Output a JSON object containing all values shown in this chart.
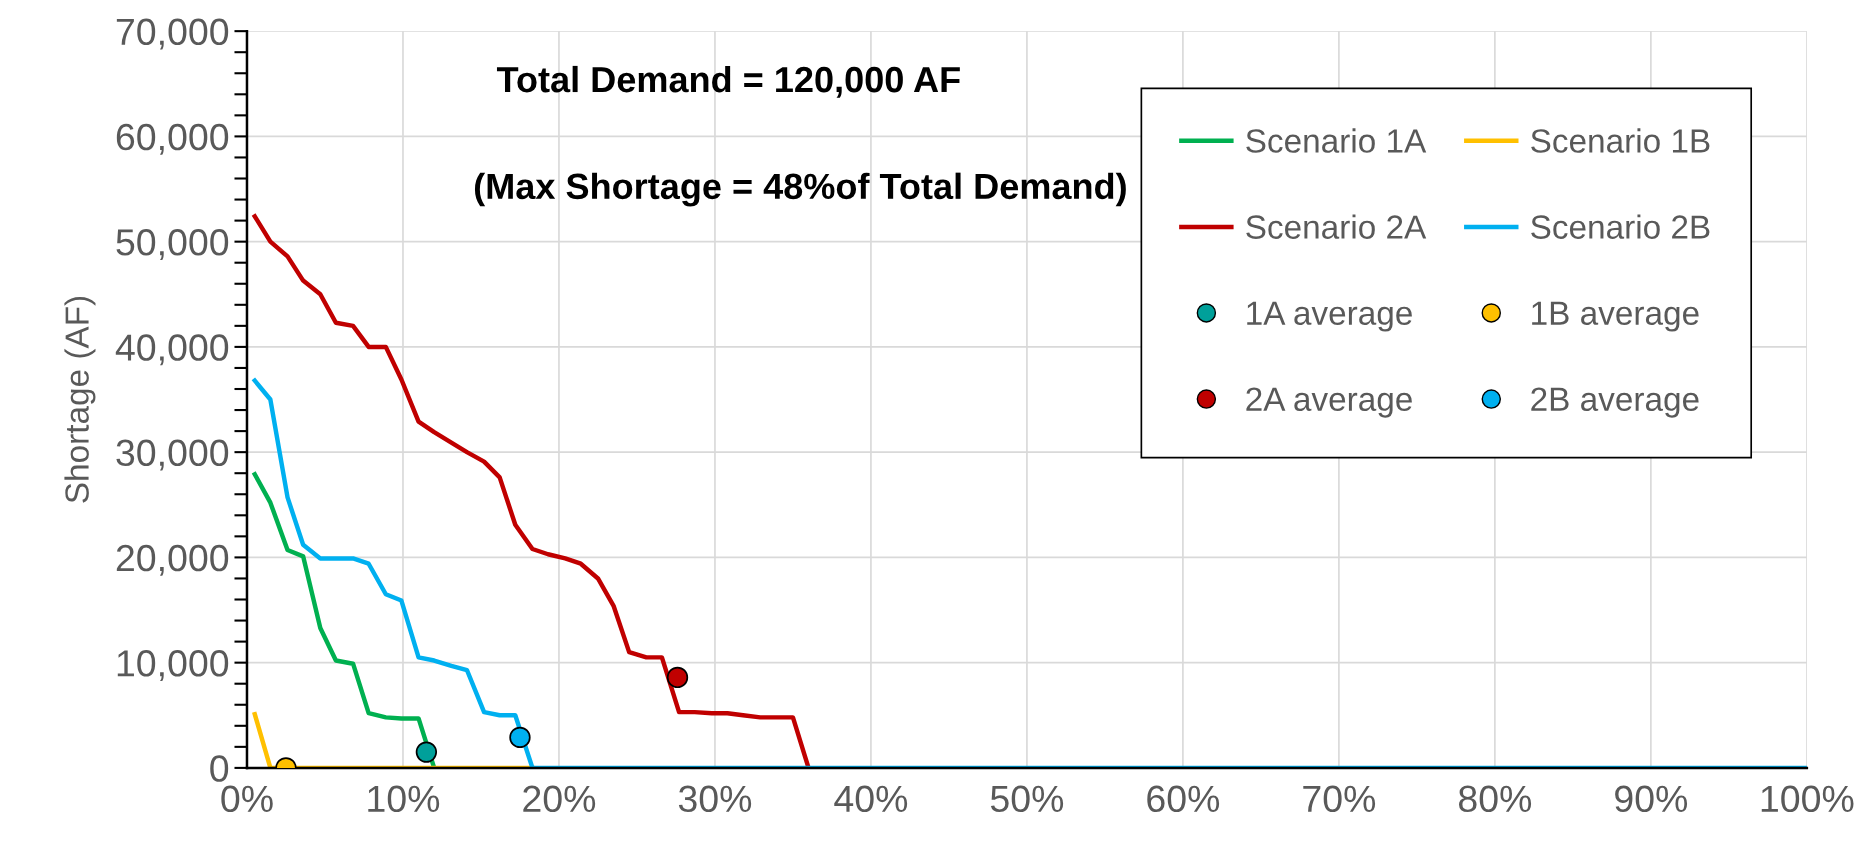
{
  "chart_data": {
    "type": "line",
    "ylabel": "Shortage (AF)",
    "annotations": [
      "Total Demand = 120,000 AF",
      "(Max Shortage = 48%of Total Demand)"
    ],
    "xlim": [
      0,
      100
    ],
    "ylim": [
      0,
      70000
    ],
    "xticks": [
      {
        "value": 0,
        "label": "0%"
      },
      {
        "value": 10,
        "label": "10%"
      },
      {
        "value": 20,
        "label": "20%"
      },
      {
        "value": 30,
        "label": "30%"
      },
      {
        "value": 40,
        "label": "40%"
      },
      {
        "value": 50,
        "label": "50%"
      },
      {
        "value": 60,
        "label": "60%"
      },
      {
        "value": 70,
        "label": "70%"
      },
      {
        "value": 80,
        "label": "80%"
      },
      {
        "value": 90,
        "label": "90%"
      },
      {
        "value": 100,
        "label": "100%"
      }
    ],
    "yticks": [
      0,
      {
        "value": 10000,
        "label": "10,000"
      },
      {
        "value": 20000,
        "label": "20,000"
      },
      {
        "value": 30000,
        "label": "30,000"
      },
      {
        "value": 40000,
        "label": "40,000"
      },
      {
        "value": 50000,
        "label": "50,000"
      },
      {
        "value": 60000,
        "label": "60,000"
      },
      {
        "value": 70000,
        "label": "70,000"
      }
    ],
    "grid": true,
    "legend": "top right",
    "line_style": "solid",
    "series": [
      {
        "name": "Scenario 1A",
        "color": "#00b050",
        "x": [
          0.5,
          1.5,
          2.6,
          3.6,
          4.7,
          5.7,
          6.8,
          7.8,
          8.9,
          9.9,
          11.0,
          12.0
        ],
        "values": [
          27900,
          25200,
          20700,
          20100,
          13300,
          10200,
          9900,
          5200,
          4800,
          4700,
          4700,
          0
        ]
      },
      {
        "name": "Scenario 1B",
        "color": "#ffc000",
        "x": [
          0.5,
          1.5,
          18.3
        ],
        "values": [
          5100,
          0,
          0
        ]
      },
      {
        "name": "Scenario 2A",
        "color": "#c00000",
        "x": [
          0.5,
          1.5,
          2.6,
          3.6,
          4.7,
          5.7,
          6.8,
          7.8,
          8.9,
          9.9,
          11.0,
          12.0,
          13.1,
          14.1,
          15.2,
          16.2,
          17.2,
          18.3,
          19.3,
          20.4,
          21.4,
          22.5,
          23.5,
          24.5,
          25.6,
          26.6,
          27.7,
          28.7,
          29.8,
          30.8,
          31.8,
          32.9,
          33.9,
          35.0,
          36.0
        ],
        "values": [
          52400,
          50000,
          48600,
          46300,
          45000,
          42300,
          42000,
          40000,
          40000,
          36900,
          32900,
          31900,
          30900,
          30000,
          29100,
          27600,
          23100,
          20800,
          20300,
          19900,
          19400,
          18000,
          15400,
          11000,
          10500,
          10500,
          5300,
          5300,
          5200,
          5200,
          5000,
          4800,
          4800,
          4800,
          0
        ]
      },
      {
        "name": "Scenario 2B",
        "color": "#00b0f0",
        "x": [
          0.5,
          1.5,
          2.6,
          3.6,
          4.7,
          5.7,
          6.8,
          7.8,
          8.9,
          9.9,
          11.0,
          12.0,
          13.1,
          14.1,
          15.2,
          16.2,
          17.2,
          18.3,
          100
        ],
        "values": [
          36800,
          35000,
          25700,
          21200,
          19900,
          19900,
          19900,
          19400,
          16500,
          15900,
          10500,
          10200,
          9700,
          9300,
          5300,
          5000,
          5000,
          0,
          0
        ]
      },
      {
        "name": "1A average",
        "type": "scatter",
        "marker": "circle",
        "color": "#00a09a",
        "x": [
          11.5
        ],
        "values": [
          1500
        ]
      },
      {
        "name": "1B average",
        "type": "scatter",
        "marker": "circle",
        "color": "#ffc000",
        "x": [
          2.5
        ],
        "values": [
          0
        ]
      },
      {
        "name": "2A average",
        "type": "scatter",
        "marker": "circle",
        "color": "#c00000",
        "x": [
          27.6
        ],
        "values": [
          8600
        ]
      },
      {
        "name": "2B average",
        "type": "scatter",
        "marker": "circle",
        "color": "#00b0f0",
        "x": [
          17.5
        ],
        "values": [
          2900
        ]
      }
    ]
  }
}
